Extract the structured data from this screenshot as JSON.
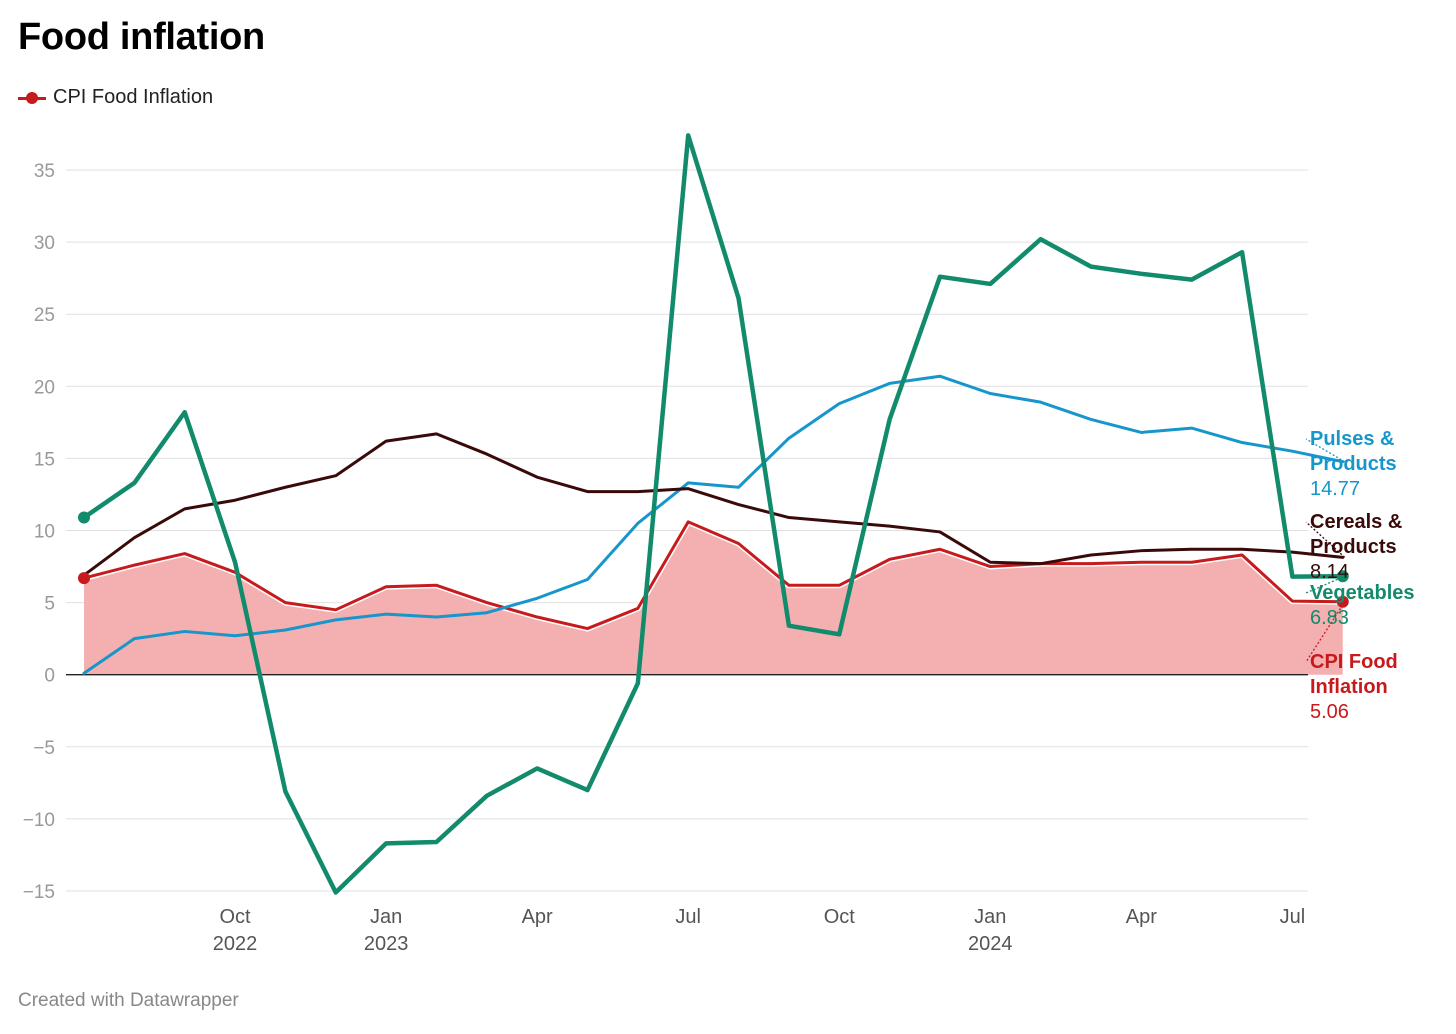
{
  "title": "Food inflation",
  "legend": {
    "label": "CPI Food Inflation",
    "color": "#c71a1d"
  },
  "footer": "Created with Datawrapper",
  "chart_data": {
    "type": "line",
    "title": "Food inflation",
    "ylim": [
      -15,
      37.5
    ],
    "yticks": [
      35,
      30,
      25,
      20,
      15,
      10,
      5,
      0,
      -5,
      -10,
      -15
    ],
    "grid": true,
    "x": [
      "2022-07",
      "2022-08",
      "2022-09",
      "2022-10",
      "2022-11",
      "2022-12",
      "2023-01",
      "2023-02",
      "2023-03",
      "2023-04",
      "2023-05",
      "2023-06",
      "2023-07",
      "2023-08",
      "2023-09",
      "2023-10",
      "2023-11",
      "2023-12",
      "2024-01",
      "2024-02",
      "2024-03",
      "2024-04",
      "2024-05",
      "2024-06",
      "2024-07",
      "2024-08"
    ],
    "xticks": [
      {
        "x": "2022-10",
        "label": "Oct",
        "year": "2022"
      },
      {
        "x": "2023-01",
        "label": "Jan",
        "year": "2023"
      },
      {
        "x": "2023-04",
        "label": "Apr",
        "year": ""
      },
      {
        "x": "2023-07",
        "label": "Jul",
        "year": ""
      },
      {
        "x": "2023-10",
        "label": "Oct",
        "year": ""
      },
      {
        "x": "2024-01",
        "label": "Jan",
        "year": "2024"
      },
      {
        "x": "2024-04",
        "label": "Apr",
        "year": ""
      },
      {
        "x": "2024-07",
        "label": "Jul",
        "year": ""
      }
    ],
    "series": [
      {
        "name": "Vegetables",
        "color": "#128b6d",
        "values": [
          10.9,
          13.3,
          18.2,
          7.8,
          -8.1,
          -15.1,
          -11.7,
          -11.6,
          -8.4,
          -6.5,
          -8.0,
          -0.6,
          37.4,
          26.1,
          3.4,
          2.8,
          17.7,
          27.6,
          27.1,
          30.2,
          28.3,
          27.8,
          27.4,
          29.3,
          6.8,
          6.83
        ],
        "end_label": "Vegetables",
        "end_value": "6.83"
      },
      {
        "name": "Pulses & Products",
        "color": "#1796cc",
        "values": [
          0.1,
          2.5,
          3.0,
          2.7,
          3.1,
          3.8,
          4.2,
          4.0,
          4.3,
          5.3,
          6.6,
          10.5,
          13.3,
          13.0,
          16.4,
          18.8,
          20.2,
          20.7,
          19.5,
          18.9,
          17.7,
          16.8,
          17.1,
          16.1,
          15.5,
          14.77
        ],
        "end_label": "Pulses & Products",
        "end_value": "14.77"
      },
      {
        "name": "Cereals & Products",
        "color": "#3a0a0a",
        "values": [
          6.9,
          9.5,
          11.5,
          12.1,
          13.0,
          13.8,
          16.2,
          16.7,
          15.3,
          13.7,
          12.7,
          12.7,
          12.9,
          11.8,
          10.9,
          10.6,
          10.3,
          9.9,
          7.8,
          7.7,
          8.3,
          8.6,
          8.7,
          8.7,
          8.5,
          8.14
        ],
        "end_label": "Cereals & Products",
        "end_value": "8.14"
      },
      {
        "name": "CPI Food Inflation",
        "color": "#c71a1d",
        "area": "#f4b0b0",
        "values": [
          6.7,
          7.6,
          8.4,
          7.1,
          5.0,
          4.5,
          6.1,
          6.2,
          5.0,
          4.0,
          3.2,
          4.6,
          10.6,
          9.1,
          6.2,
          6.2,
          8.0,
          8.7,
          7.5,
          7.7,
          7.7,
          7.8,
          7.8,
          8.3,
          5.1,
          5.06
        ],
        "end_label": "CPI Food Inflation",
        "end_value": "5.06"
      }
    ]
  }
}
